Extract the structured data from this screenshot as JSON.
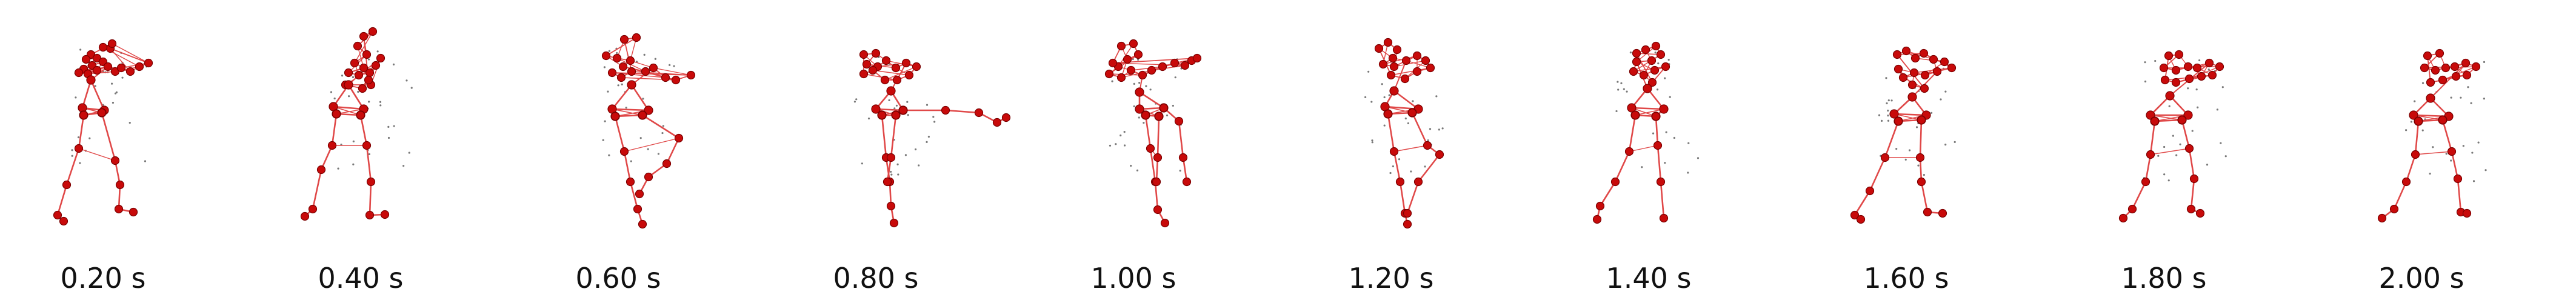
{
  "figure": {
    "frames": [
      {
        "label": "0.20 s"
      },
      {
        "label": "0.40 s"
      },
      {
        "label": "0.60 s"
      },
      {
        "label": "0.80 s"
      },
      {
        "label": "1.00 s"
      },
      {
        "label": "1.20 s"
      },
      {
        "label": "1.40 s"
      },
      {
        "label": "1.60 s"
      },
      {
        "label": "1.80 s"
      },
      {
        "label": "2.00 s"
      }
    ]
  },
  "style": {
    "joint_color": "#c80a0a",
    "joint_edge_color": "#7a0000",
    "bone_color": "#e04848",
    "trace_color": "#404040"
  }
}
